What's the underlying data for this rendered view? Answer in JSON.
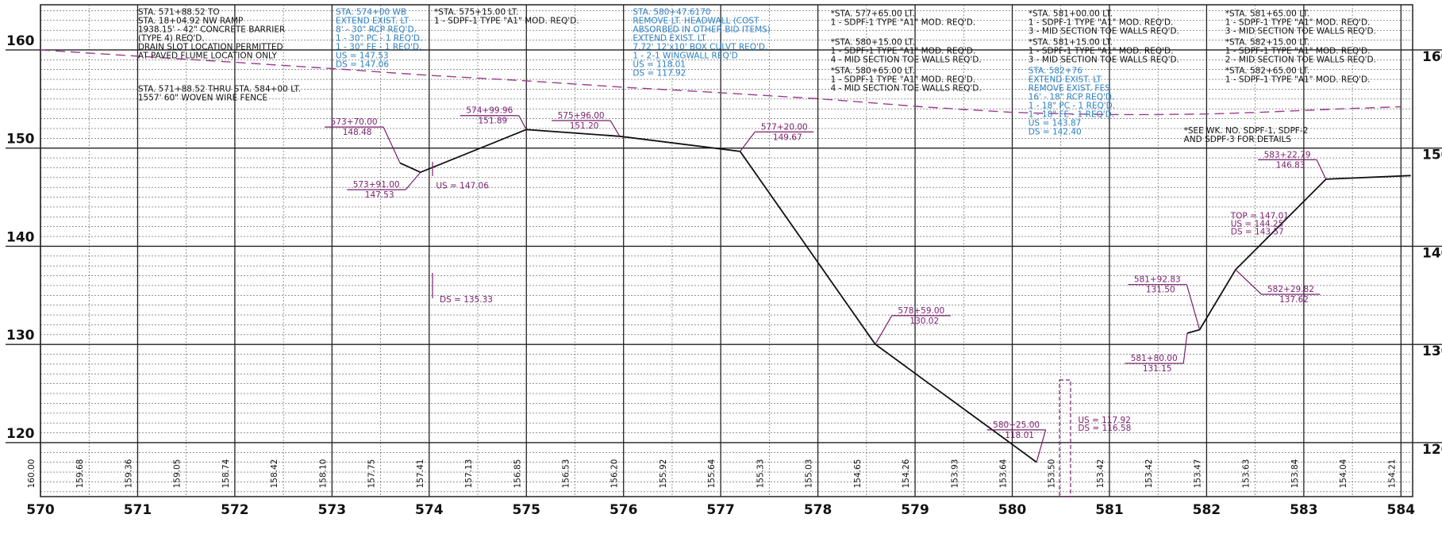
{
  "chart_data": {
    "type": "line",
    "xlim": [
      570,
      584.12
    ],
    "ylim": [
      114.5,
      164.6
    ],
    "xticks": [
      570,
      571,
      572,
      573,
      574,
      575,
      576,
      577,
      578,
      579,
      580,
      581,
      582,
      583,
      584
    ],
    "yticks": [
      120,
      130,
      140,
      150,
      160
    ],
    "grid": true,
    "series": [
      {
        "color": "#111111",
        "x": [
          573.7,
          573.91,
          574.9996,
          575.96,
          577.2,
          578.59,
          580.25,
          null,
          581.8,
          581.9283,
          582.2982,
          583.2279,
          584.1
        ],
        "values": [
          148.48,
          147.53,
          151.89,
          151.2,
          149.67,
          130.02,
          118.01,
          null,
          131.15,
          131.5,
          137.62,
          146.83,
          147.2
        ],
        "x_labels": [
          "573+70.00",
          "573+91.00",
          "574+99.96",
          "575+96.00",
          "577+20.00",
          "578+59.00",
          "580+25.00",
          null,
          "581+80.00",
          "581+92.83",
          "582+29.82",
          "583+22.79",
          null
        ],
        "value_labels": [
          "148.48",
          "147.53",
          "151.89",
          "151.20",
          "149.67",
          "130.02",
          "118.01",
          null,
          "131.15",
          "131.50",
          "137.62",
          "146.83",
          null
        ]
      },
      {
        "color": "#9b3a8f",
        "dashed": true,
        "x": [
          570,
          570.5,
          571,
          571.5,
          572,
          572.5,
          573,
          573.5,
          574,
          574.5,
          575,
          575.5,
          576,
          576.5,
          577,
          577.5,
          578,
          578.5,
          579,
          579.5,
          580,
          580.5,
          581,
          581.5,
          582,
          582.5,
          583,
          583.5,
          584
        ],
        "values": [
          160.0,
          159.68,
          159.36,
          159.05,
          158.74,
          158.42,
          158.1,
          157.75,
          157.41,
          157.13,
          156.85,
          156.53,
          156.2,
          155.92,
          155.64,
          155.33,
          155.03,
          154.65,
          154.26,
          153.93,
          153.64,
          153.5,
          153.42,
          153.42,
          153.47,
          153.63,
          153.84,
          154.04,
          154.21
        ],
        "value_labels": [
          "160.00",
          "159.68",
          "159.36",
          "159.05",
          "158.74",
          "158.42",
          "158.10",
          "157.75",
          "157.41",
          "157.13",
          "156.85",
          "156.53",
          "156.20",
          "155.92",
          "155.64",
          "155.33",
          "155.03",
          "154.65",
          "154.26",
          "153.93",
          "153.64",
          "153.50",
          "153.42",
          "153.42",
          "153.47",
          "153.63",
          "153.84",
          "154.04",
          "154.21"
        ]
      }
    ],
    "notes": [
      {
        "color": "#111111",
        "lines": [
          "STA. 571+88.52 TO",
          "STA. 18+04.92 NW RAMP",
          "1938.15' - 42\" CONCRETE BARRIER",
          "(TYPE 4) REQ'D.",
          "DRAIN SLOT LOCATION PERMITTED",
          "AT PAVED FLUME LOCATION ONLY"
        ]
      },
      {
        "color": "#111111",
        "lines": [
          "STA. 571+88.52 THRU STA. 584+00 LT.",
          "1557' 60\" WOVEN WIRE FENCE"
        ]
      },
      {
        "color": "#2a7fc4",
        "lines": [
          "STA. 574+00 WB",
          "EXTEND EXIST. LT",
          "8' - 30\" RCP REQ'D.",
          "1 - 30\" PC - 1 REQ'D.",
          "1 - 30\" FE - 1 REQ'D.",
          "US = 147.53",
          "DS = 147.06"
        ]
      },
      {
        "color": "#111111",
        "lines": [
          "*STA. 575+15.00 LT.",
          "1 - SDPF-1 TYPE \"A1\" MOD. REQ'D."
        ]
      },
      {
        "color": "#2a7fc4",
        "lines": [
          "STA. 580+47.6170",
          "REMOVE LT. HEADWALL (COST",
          "ABSORBED IN OTHER BID ITEMS)",
          "EXTEND EXIST. LT",
          "7.72' 12'x10' BOX CULVT REQ'D.",
          "1 - 2-1 WINGWALL REQ'D",
          "US = 118.01",
          "DS = 117.92"
        ]
      },
      {
        "color": "#111111",
        "lines": [
          "*STA. 577+65.00 LT.",
          "1 - SDPF-1 TYPE \"A1\" MOD. REQ'D."
        ]
      },
      {
        "color": "#111111",
        "lines": [
          "*STA. 580+15.00 LT.",
          "1 - SDPF-1 TYPE \"A1\" MOD. REQ'D.",
          "4 - MID SECTION TOE WALLS REQ'D."
        ]
      },
      {
        "color": "#111111",
        "lines": [
          "*STA. 580+65.00 LT.",
          "1 - SDPF-1 TYPE \"A1\" MOD. REQ'D.",
          "4 - MID SECTION TOE WALLS REQ'D."
        ]
      },
      {
        "color": "#111111",
        "lines": [
          "*STA. 581+00.00 LT.",
          "1 - SDPF-1 TYPE \"A1\" MOD. REQ'D.",
          "3 - MID SECTION TOE WALLS REQ'D."
        ]
      },
      {
        "color": "#111111",
        "lines": [
          "*STA. 581+15.00 LT.",
          "1 - SDPF-1 TYPE \"A1\" MOD. REQ'D.",
          "3 - MID SECTION TOE WALLS REQ'D."
        ]
      },
      {
        "color": "#2a7fc4",
        "lines": [
          "STA. 582+76",
          "EXTEND EXIST. LT",
          "REMOVE EXIST. FES",
          "16' - 18\" RCP REQ'D.",
          "1 - 18\" PC - 1 REQ'D.",
          "1 - 18\" FE - 1 REQ'D.",
          "US = 143.87",
          "DS = 142.40"
        ]
      },
      {
        "color": "#111111",
        "lines": [
          "*STA. 581+65.00 LT.",
          "1 - SDPF-1 TYPE \"A1\" MOD. REQ'D.",
          "3 - MID SECTION TOE WALLS REQ'D."
        ]
      },
      {
        "color": "#111111",
        "lines": [
          "*STA. 582+15.00 LT.",
          "1 - SDPF-1 TYPE \"A1\" MOD. REQ'D.",
          "2 - MID SECTION TOE WALLS REQ'D."
        ]
      },
      {
        "color": "#111111",
        "lines": [
          "*STA. 582+65.00 LT.",
          "1 - SDPF-1 TYPE \"A1\" MOD. REQ'D."
        ]
      },
      {
        "color": "#111111",
        "lines": [
          "*SEE WK. NO. SDPF-1, SDPF-2",
          "AND SDPF-3 FOR DETAILS"
        ]
      },
      {
        "color": "#7a1d6e",
        "lines": [
          "US = 147.06"
        ]
      },
      {
        "color": "#7a1d6e",
        "lines": [
          "DS = 135.33"
        ]
      },
      {
        "color": "#7a1d6e",
        "lines": [
          "US = 117.92",
          "DS = 116.58"
        ]
      },
      {
        "color": "#7a1d6e",
        "lines": [
          "TOP = 147.01",
          "US = 144.25",
          "DS = 143.57"
        ]
      }
    ]
  }
}
